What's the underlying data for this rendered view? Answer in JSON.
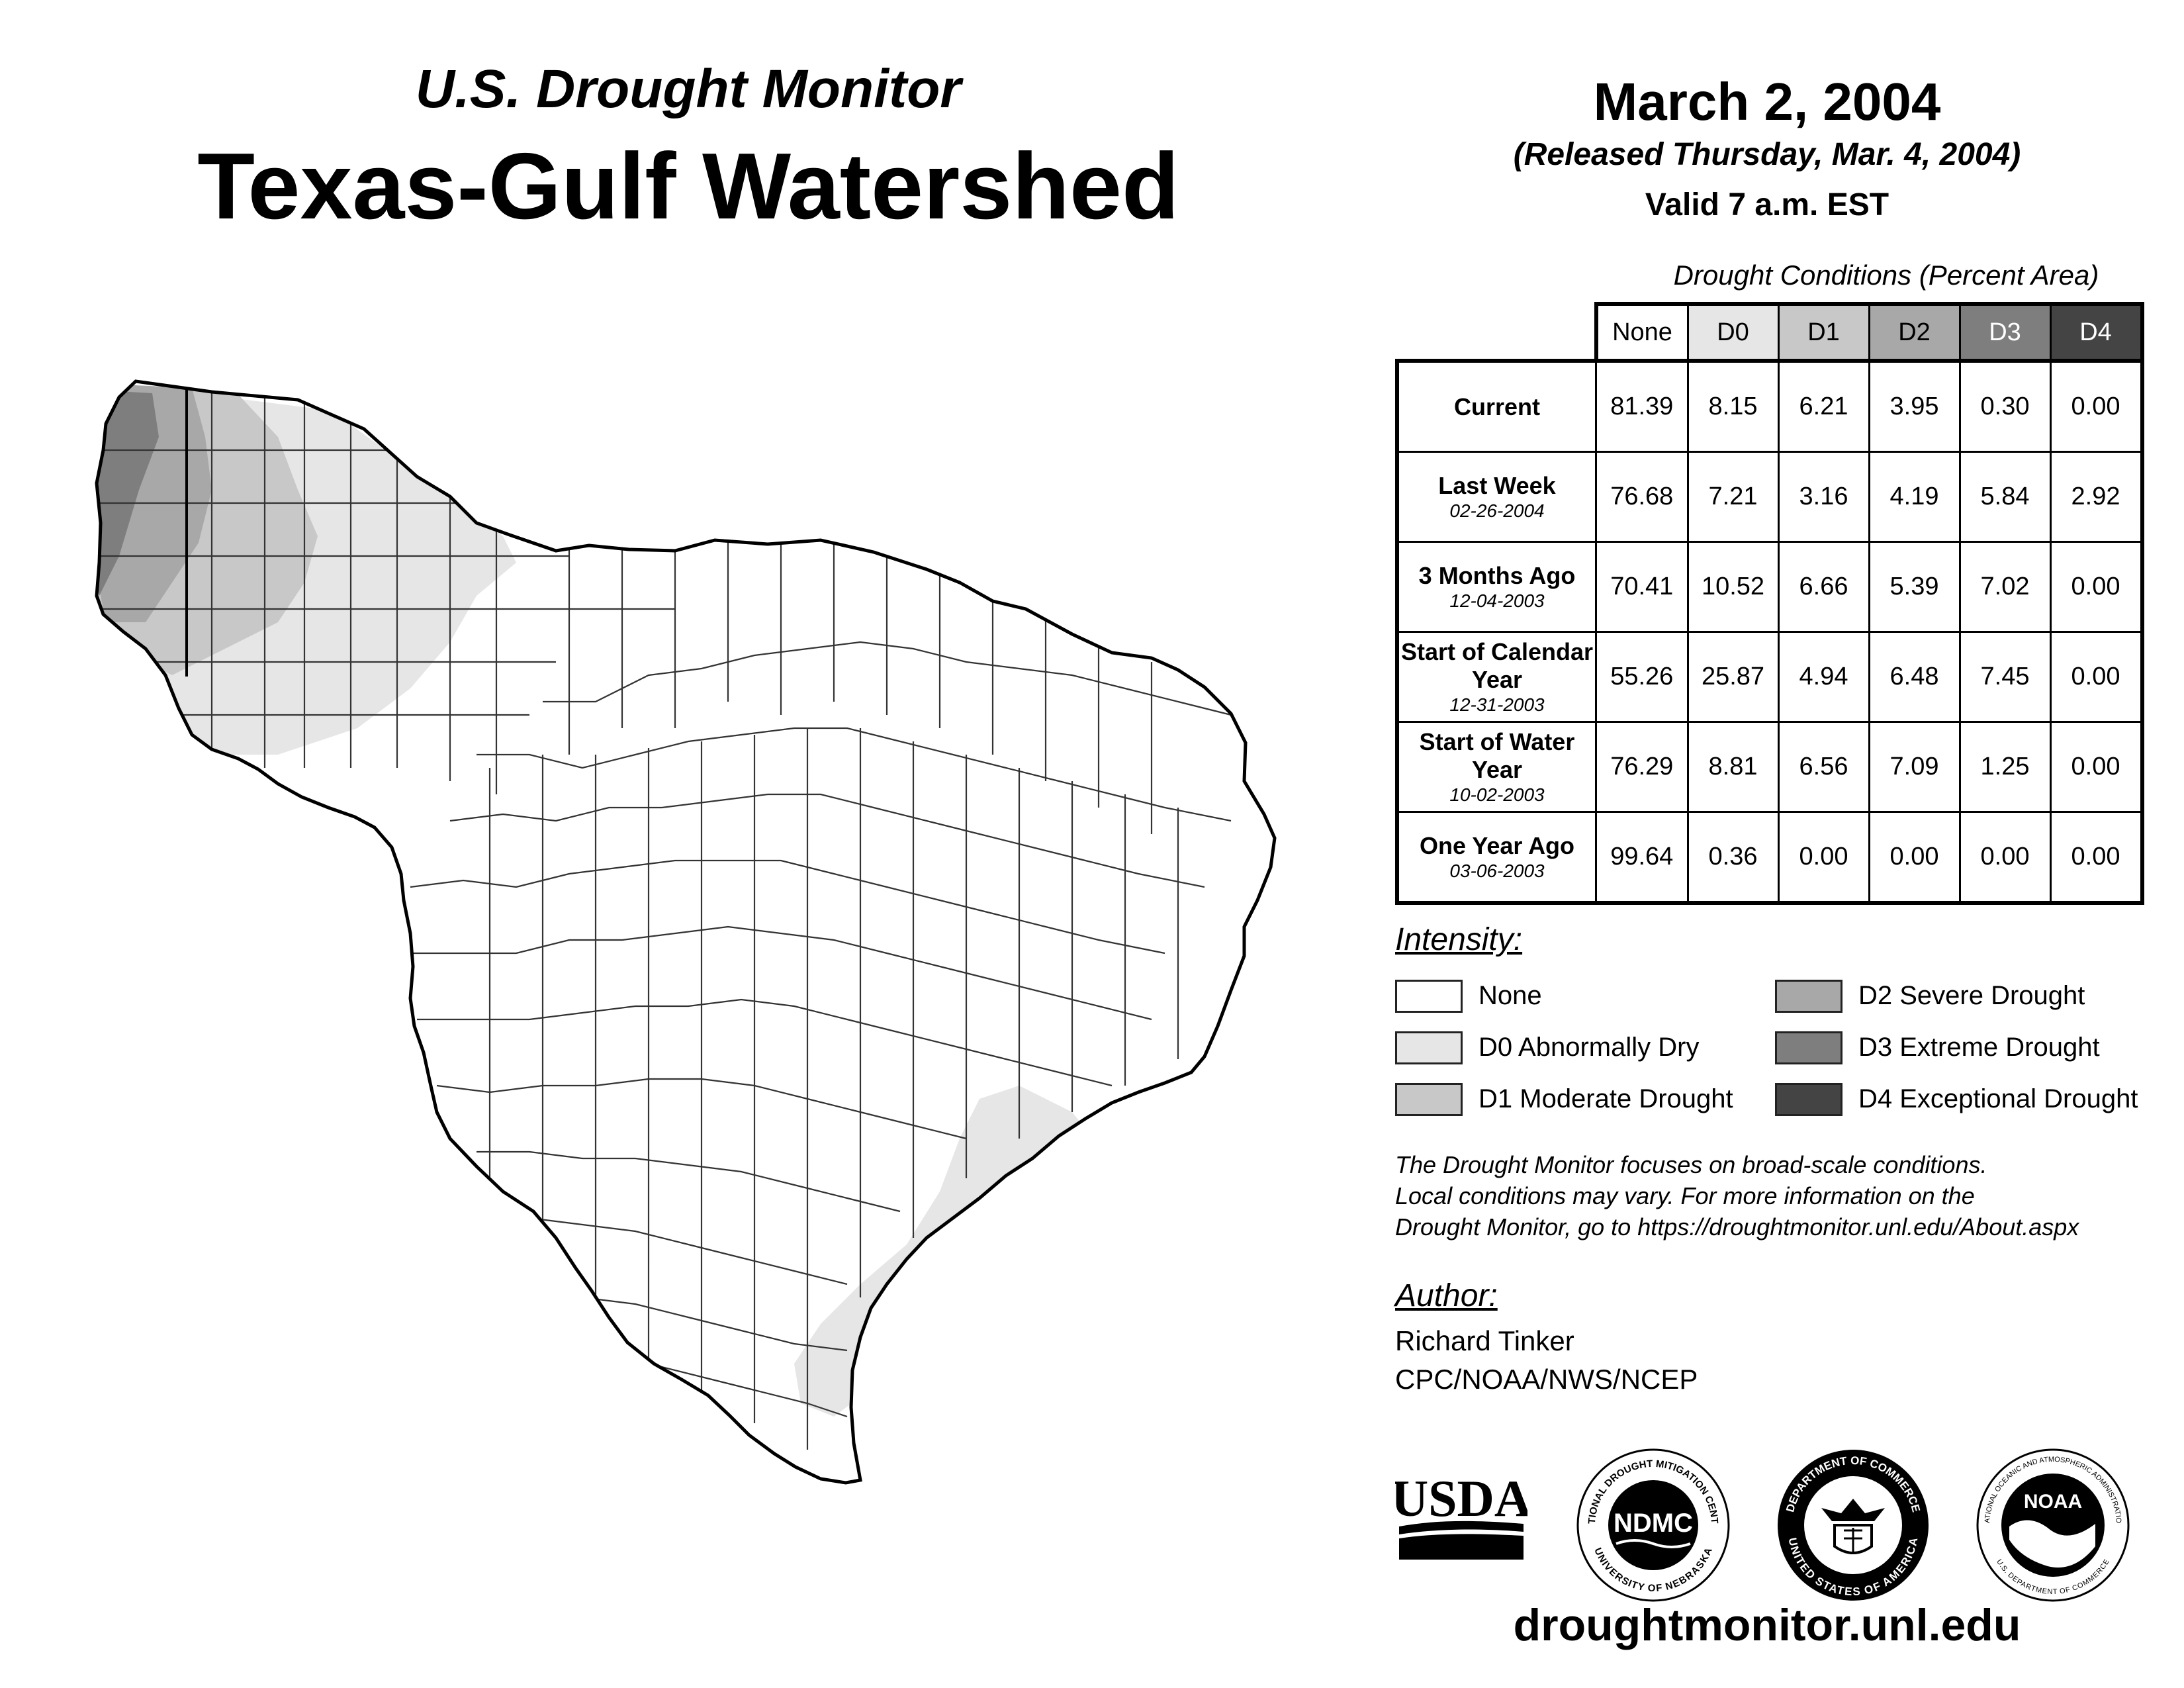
{
  "header": {
    "subtitle": "U.S. Drought Monitor",
    "title": "Texas-Gulf Watershed"
  },
  "date": {
    "main": "March 2, 2004",
    "released": "(Released Thursday, Mar. 4, 2004)",
    "valid": "Valid 7 a.m. EST"
  },
  "table": {
    "caption": "Drought Conditions (Percent Area)",
    "columns": [
      "None",
      "D0",
      "D1",
      "D2",
      "D3",
      "D4"
    ],
    "rows": [
      {
        "label": "Current",
        "date": "",
        "values": [
          "81.39",
          "8.15",
          "6.21",
          "3.95",
          "0.30",
          "0.00"
        ]
      },
      {
        "label": "Last Week",
        "date": "02-26-2004",
        "values": [
          "76.68",
          "7.21",
          "3.16",
          "4.19",
          "5.84",
          "2.92"
        ]
      },
      {
        "label": "3 Months Ago",
        "date": "12-04-2003",
        "values": [
          "70.41",
          "10.52",
          "6.66",
          "5.39",
          "7.02",
          "0.00"
        ]
      },
      {
        "label": "Start of Calendar Year",
        "date": "12-31-2003",
        "values": [
          "55.26",
          "25.87",
          "4.94",
          "6.48",
          "7.45",
          "0.00"
        ]
      },
      {
        "label": "Start of Water Year",
        "date": "10-02-2003",
        "values": [
          "76.29",
          "8.81",
          "6.56",
          "7.09",
          "1.25",
          "0.00"
        ]
      },
      {
        "label": "One Year Ago",
        "date": "03-06-2003",
        "values": [
          "99.64",
          "0.36",
          "0.00",
          "0.00",
          "0.00",
          "0.00"
        ]
      }
    ]
  },
  "intensity": {
    "title": "Intensity:",
    "items": [
      {
        "label": "None",
        "color": "#ffffff"
      },
      {
        "label": "D0 Abnormally Dry",
        "color": "#e6e6e6"
      },
      {
        "label": "D1 Moderate Drought",
        "color": "#c8c8c8"
      },
      {
        "label": "D2 Severe Drought",
        "color": "#a8a8a8"
      },
      {
        "label": "D3 Extreme Drought",
        "color": "#7e7e7e"
      },
      {
        "label": "D4 Exceptional Drought",
        "color": "#444444"
      }
    ]
  },
  "disclaimer": {
    "line1": "The Drought Monitor focuses on broad-scale conditions.",
    "line2": "Local conditions may vary. For more information on the",
    "line3": "Drought Monitor, go to https://droughtmonitor.unl.edu/About.aspx"
  },
  "author": {
    "title": "Author:",
    "name": "Richard Tinker",
    "org": "CPC/NOAA/NWS/NCEP"
  },
  "logos": {
    "usda": "USDA",
    "ndmc": "NDMC",
    "ndmc_ring_top": "NATIONAL DROUGHT MITIGATION CENTER",
    "ndmc_ring_bottom": "UNIVERSITY OF NEBRASKA",
    "doc_ring_top": "DEPARTMENT OF COMMERCE",
    "doc_ring_bottom": "UNITED STATES OF AMERICA",
    "noaa": "NOAA",
    "noaa_ring_top": "NATIONAL OCEANIC AND ATMOSPHERIC ADMINISTRATION",
    "noaa_ring_bottom": "U.S. DEPARTMENT OF COMMERCE"
  },
  "website": "droughtmonitor.unl.edu"
}
